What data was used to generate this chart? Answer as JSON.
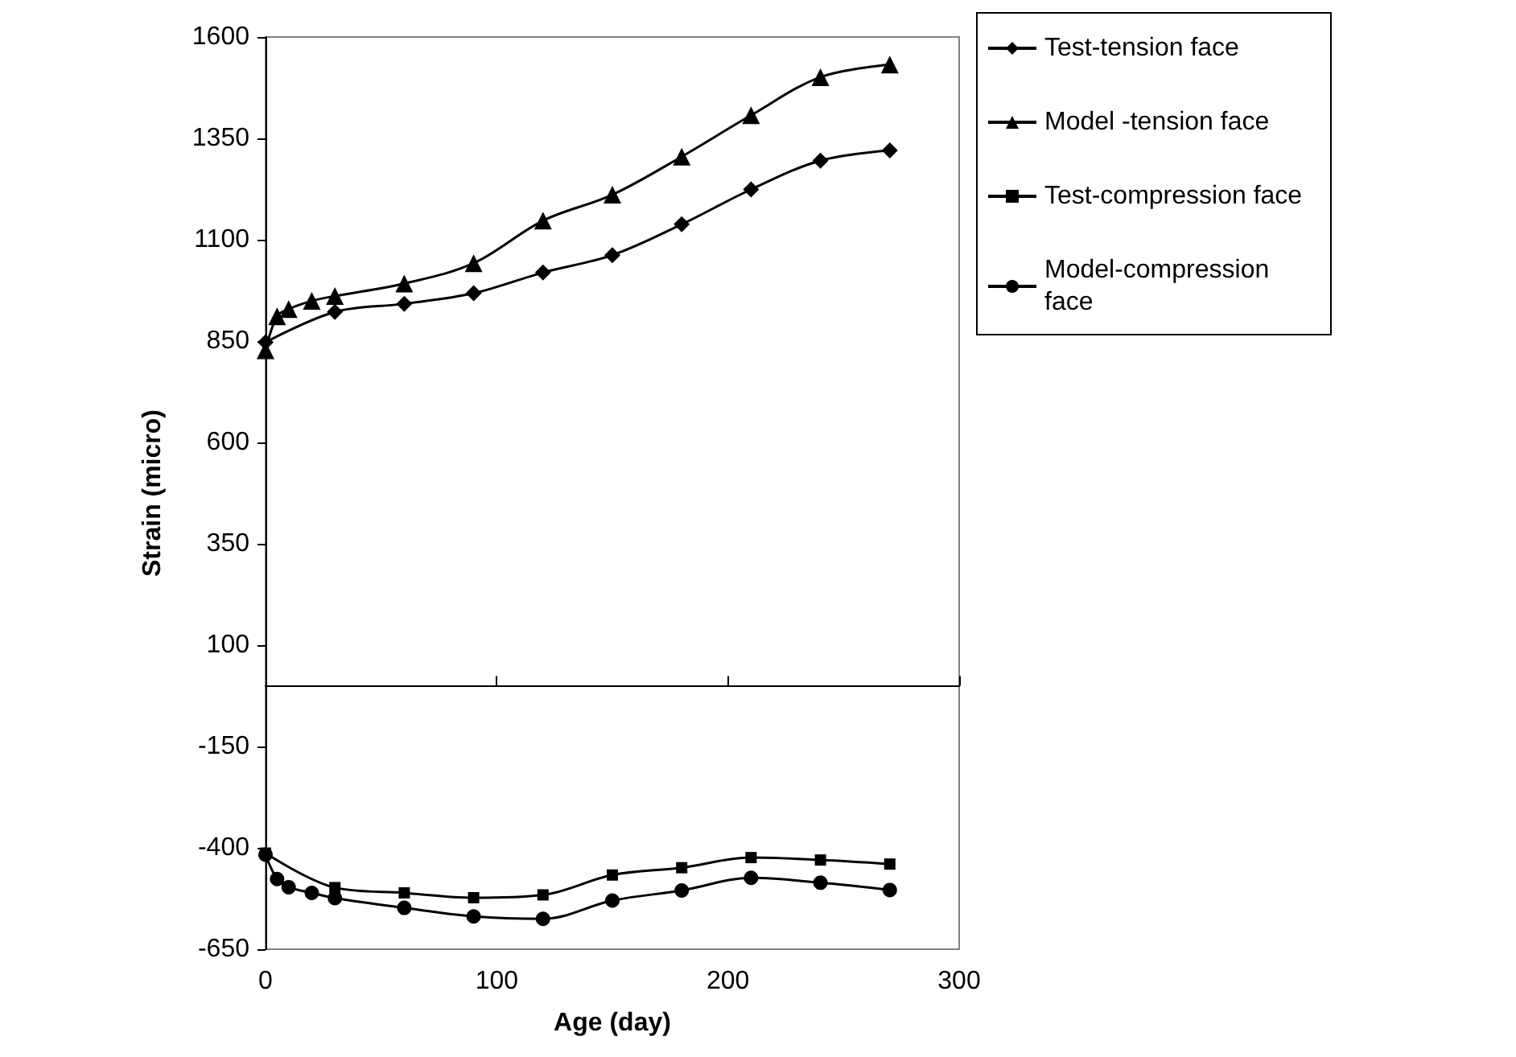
{
  "chart_data": {
    "type": "line",
    "xlabel": "Age (day)",
    "ylabel": "Strain (micro)",
    "xlim": [
      0,
      300
    ],
    "xticks": [
      0,
      100,
      200,
      300
    ],
    "ylim": [
      -650,
      1600
    ],
    "yticks": [
      -650,
      -400,
      -150,
      100,
      350,
      600,
      850,
      1100,
      1350,
      1600
    ],
    "grid": false,
    "legend": "right",
    "series": [
      {
        "name": "Test-tension face",
        "color": "#000000",
        "marker": "diamond",
        "x": [
          0,
          30,
          60,
          90,
          120,
          150,
          180,
          210,
          240,
          270
        ],
        "values": [
          847,
          922,
          942,
          968,
          1019,
          1062,
          1138,
          1224,
          1295,
          1320
        ]
      },
      {
        "name": "Model -tension face",
        "color": "#000000",
        "marker": "triangle",
        "x": [
          0,
          5,
          10,
          20,
          30,
          60,
          90,
          120,
          150,
          180,
          210,
          240,
          270
        ],
        "values": [
          827,
          911,
          929,
          949,
          961,
          992,
          1042,
          1147,
          1211,
          1305,
          1407,
          1501,
          1532
        ]
      },
      {
        "name": "Test-compression face",
        "color": "#000000",
        "marker": "square",
        "x": [
          0,
          30,
          60,
          90,
          120,
          150,
          180,
          210,
          240,
          270
        ],
        "values": [
          -413,
          -498,
          -511,
          -523,
          -516,
          -467,
          -449,
          -424,
          -430,
          -440
        ]
      },
      {
        "name": "Model-compression face",
        "color": "#000000",
        "marker": "circle",
        "x": [
          0,
          5,
          10,
          20,
          30,
          60,
          90,
          120,
          150,
          180,
          210,
          240,
          270
        ],
        "values": [
          -417,
          -477,
          -497,
          -511,
          -524,
          -548,
          -569,
          -575,
          -530,
          -505,
          -474,
          -486,
          -504
        ]
      }
    ]
  }
}
